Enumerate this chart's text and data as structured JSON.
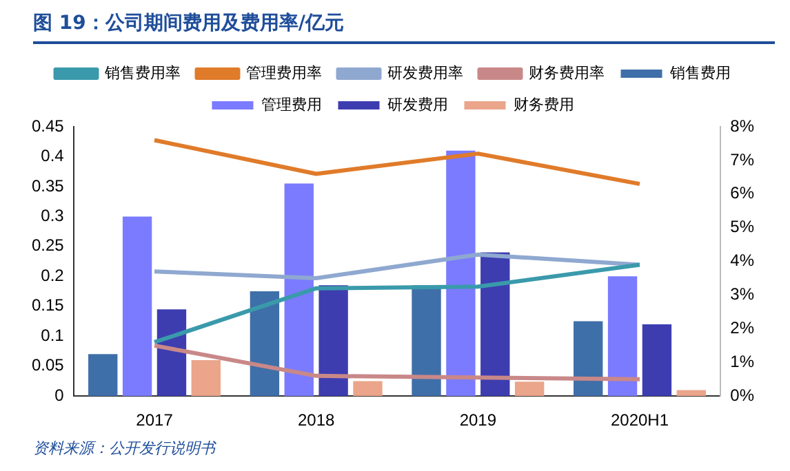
{
  "chart_data": {
    "type": "bar",
    "title": "图 19：公司期间费用及费用率/亿元",
    "categories": [
      "2017",
      "2018",
      "2019",
      "2020H1"
    ],
    "series": [
      {
        "name": "销售费用",
        "color": "#3f6fa8",
        "values": [
          0.07,
          0.175,
          0.185,
          0.125
        ]
      },
      {
        "name": "管理费用",
        "color": "#7b7bff",
        "values": [
          0.3,
          0.355,
          0.41,
          0.2
        ]
      },
      {
        "name": "研发费用",
        "color": "#3d3db0",
        "values": [
          0.145,
          0.185,
          0.24,
          0.12
        ]
      },
      {
        "name": "财务费用",
        "color": "#eaa58a",
        "values": [
          0.06,
          0.025,
          0.024,
          0.01
        ]
      },
      {
        "name": "销售费用率",
        "type": "line",
        "axis": "y2",
        "color": "#3a9aab",
        "values": [
          1.6,
          3.2,
          3.25,
          3.9
        ]
      },
      {
        "name": "管理费用率",
        "type": "line",
        "axis": "y2",
        "color": "#e07b2a",
        "values": [
          7.6,
          6.6,
          7.2,
          6.3
        ]
      },
      {
        "name": "研发费用率",
        "type": "line",
        "axis": "y2",
        "color": "#8fa8d0",
        "values": [
          3.7,
          3.5,
          4.2,
          3.9
        ]
      },
      {
        "name": "财务费用率",
        "type": "line",
        "axis": "y2",
        "color": "#c98888",
        "values": [
          1.5,
          0.6,
          0.55,
          0.5
        ]
      }
    ],
    "ylim": [
      0,
      0.45
    ],
    "yticks": [
      0,
      0.05,
      0.1,
      0.15,
      0.2,
      0.25,
      0.3,
      0.35,
      0.4,
      0.45
    ],
    "y2lim": [
      0,
      8
    ],
    "y2ticks": [
      {
        "value": 0,
        "label": "0%"
      },
      {
        "value": 1,
        "label": "1%"
      },
      {
        "value": 2,
        "label": "2%"
      },
      {
        "value": 3,
        "label": "3%"
      },
      {
        "value": 4,
        "label": "4%"
      },
      {
        "value": 5,
        "label": "5%"
      },
      {
        "value": 6,
        "label": "6%"
      },
      {
        "value": 7,
        "label": "7%"
      },
      {
        "value": 8,
        "label": "8%"
      }
    ],
    "grid": false,
    "legend": "top",
    "marker": "none",
    "annotations": [
      "资料来源：公开发行说明书"
    ]
  }
}
